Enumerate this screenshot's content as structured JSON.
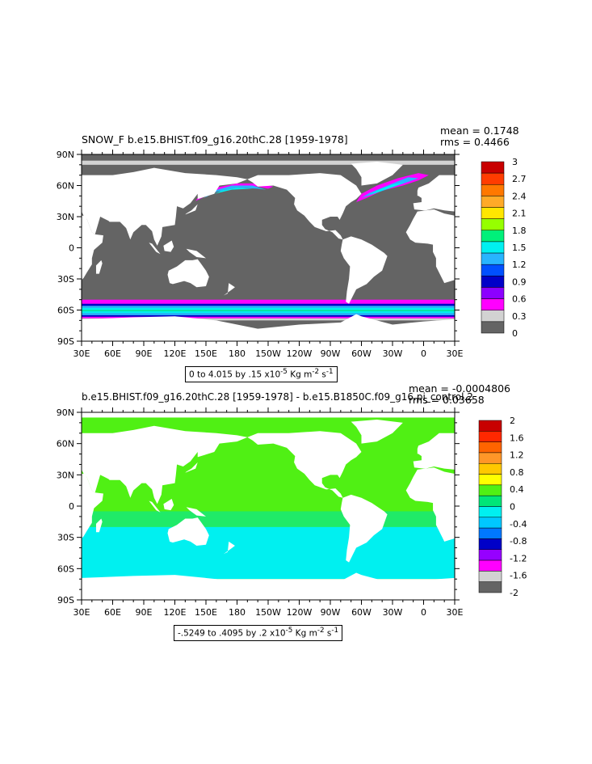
{
  "chart_data": [
    {
      "type": "heatmap",
      "title": "SNOW_F b.e15.BHIST.f09_g16.20thC.28 [1959-1978]",
      "stats": {
        "mean": "mean = 0.1748",
        "rms": "rms = 0.4466"
      },
      "x_tick_labels": [
        "30E",
        "60E",
        "90E",
        "120E",
        "150E",
        "180",
        "150W",
        "120W",
        "90W",
        "60W",
        "30W",
        "0",
        "30E"
      ],
      "y_tick_labels": [
        "90N",
        "60N",
        "30N",
        "0",
        "30S",
        "60S",
        "90S"
      ],
      "xlim": [
        30,
        390
      ],
      "ylim": [
        -90,
        90
      ],
      "range_label": {
        "text": "0 to 4.015 by .15 x10",
        "exp": "-5",
        "unit": " Kg m",
        "unit_exp": "-2",
        "unit2": " s",
        "unit2_exp": "-1"
      },
      "colorbar": {
        "labels": [
          "3",
          "2.7",
          "2.4",
          "2.1",
          "1.8",
          "1.5",
          "1.2",
          "0.9",
          "0.6",
          "0.3",
          "0"
        ],
        "colors": [
          "#c80000",
          "#ff3c00",
          "#ff7800",
          "#ffaa28",
          "#ffe600",
          "#96ff00",
          "#00f07a",
          "#00f0f0",
          "#28b4ff",
          "#0050ff",
          "#0000c8",
          "#8c00ff",
          "#ff00ff",
          "#d2d2d2",
          "#646464"
        ]
      }
    },
    {
      "type": "heatmap",
      "title": "b.e15.BHIST.f09_g16.20thC.28 [1959-1978] - b.e15.B1850C.f09_g16.pi_control.2",
      "stats": {
        "mean": "mean = -0.0004806",
        "rms": "rms = 0.03658"
      },
      "x_tick_labels": [
        "30E",
        "60E",
        "90E",
        "120E",
        "150E",
        "180",
        "150W",
        "120W",
        "90W",
        "60W",
        "30W",
        "0",
        "30E"
      ],
      "y_tick_labels": [
        "90N",
        "60N",
        "30N",
        "0",
        "30S",
        "60S",
        "90S"
      ],
      "xlim": [
        30,
        390
      ],
      "ylim": [
        -90,
        90
      ],
      "range_label": {
        "text": "-.5249 to .4095 by .2 x10",
        "exp": "-5",
        "unit": " Kg m",
        "unit_exp": "-2",
        "unit2": " s",
        "unit2_exp": "-1"
      },
      "colorbar": {
        "labels": [
          "2",
          "1.6",
          "1.2",
          "0.8",
          "0.4",
          "0",
          "-0.4",
          "-0.8",
          "-1.2",
          "-1.6",
          "-2"
        ],
        "colors": [
          "#c80000",
          "#ff2800",
          "#ff6400",
          "#ff9628",
          "#ffc800",
          "#ffff00",
          "#50f014",
          "#00e678",
          "#00f0f0",
          "#00c8ff",
          "#0078ff",
          "#0000c8",
          "#9600ff",
          "#ff00ff",
          "#d2d2d2",
          "#646464"
        ]
      }
    }
  ]
}
